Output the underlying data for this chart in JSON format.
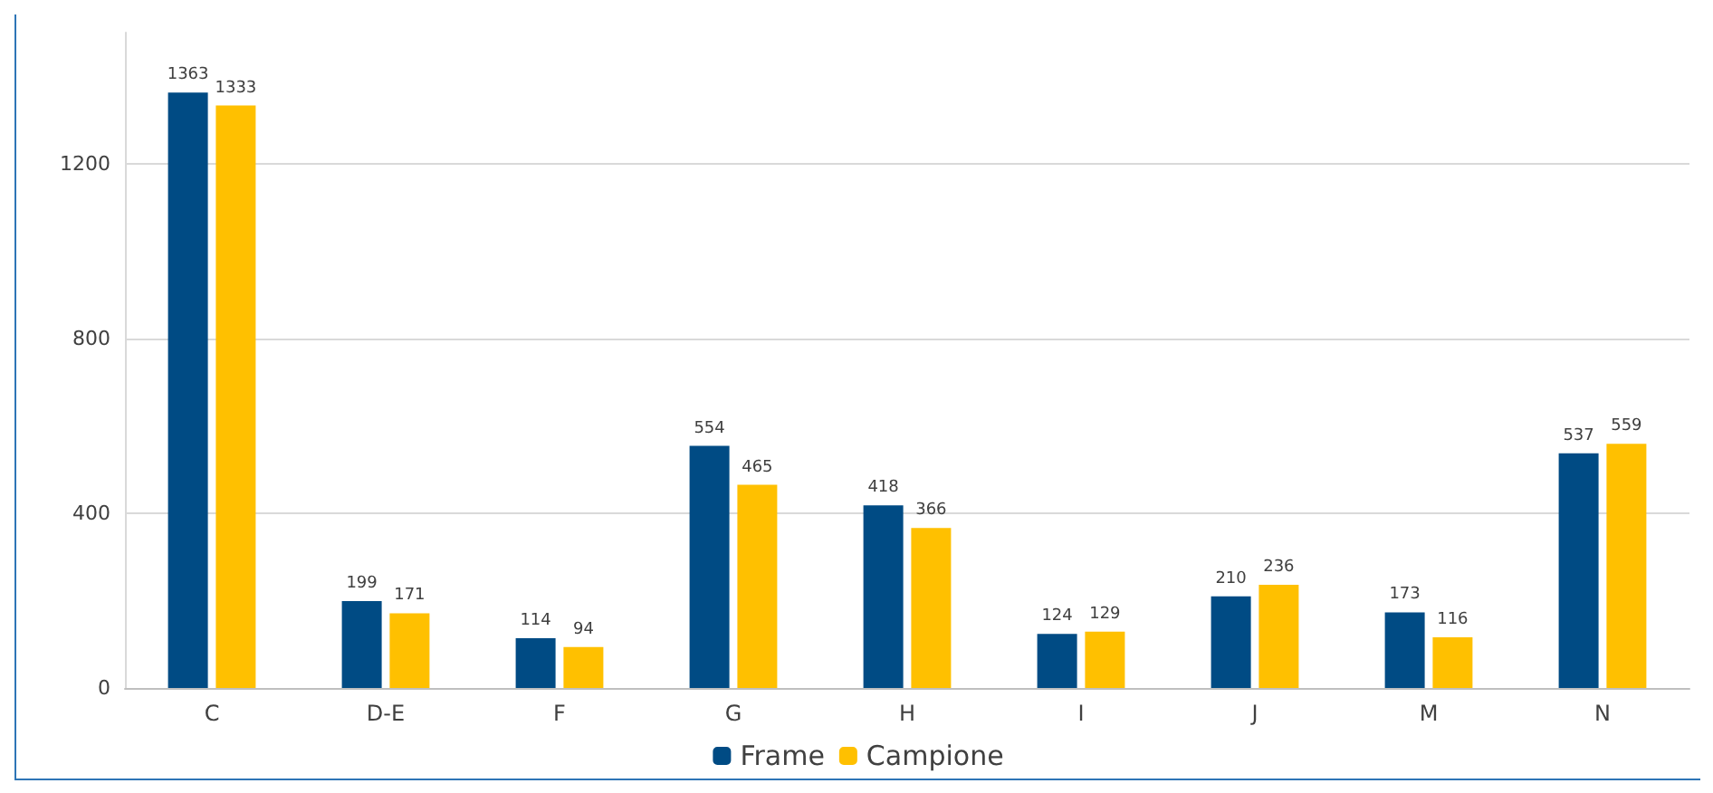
{
  "chart_data": {
    "type": "bar",
    "categories": [
      "C",
      "D-E",
      "F",
      "G",
      "H",
      "I",
      "J",
      "M",
      "N"
    ],
    "series": [
      {
        "name": "Frame",
        "color": "#004b84",
        "values": [
          1363,
          199,
          114,
          554,
          418,
          124,
          210,
          173,
          537
        ]
      },
      {
        "name": "Campione",
        "color": "#ffc000",
        "values": [
          1333,
          171,
          94,
          465,
          366,
          129,
          236,
          116,
          559
        ]
      }
    ],
    "ylim": [
      0,
      1500
    ],
    "yticks": [
      0,
      400,
      800,
      1200
    ],
    "grid": "y",
    "legend": "bottom",
    "data_labels": true
  }
}
